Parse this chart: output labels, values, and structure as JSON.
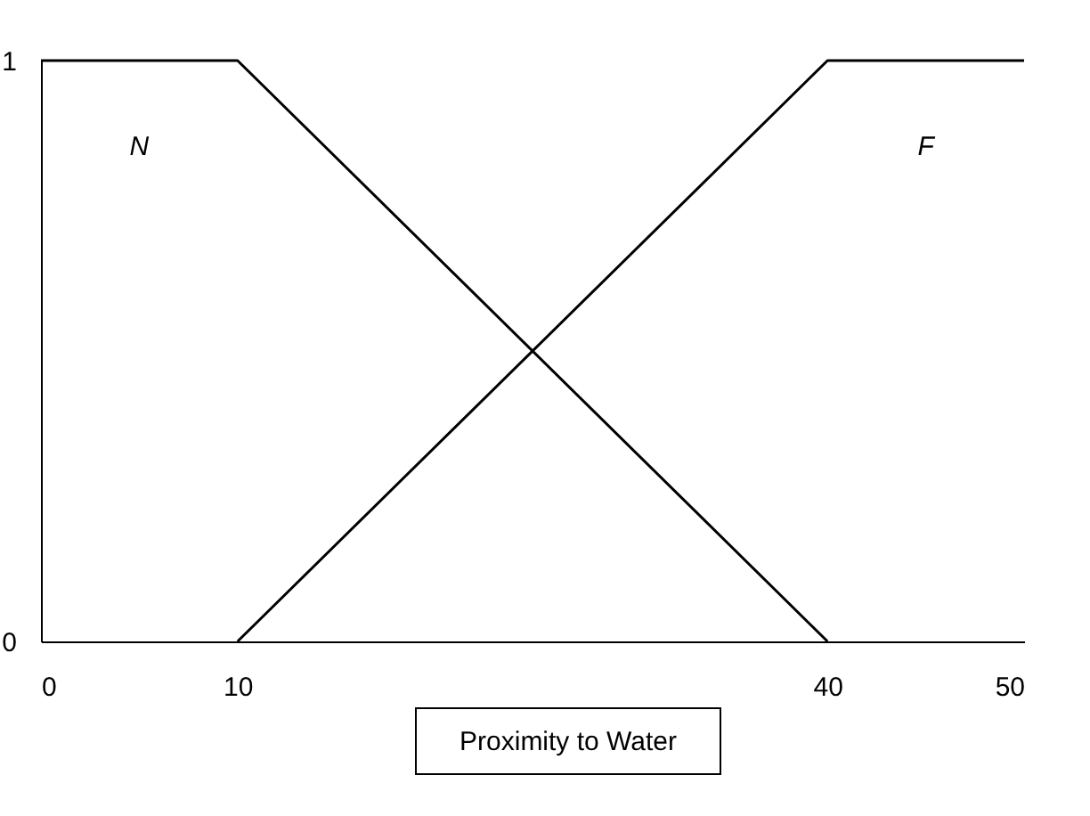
{
  "chart_data": {
    "type": "line",
    "xlabel": "Proximity to Water",
    "series": [
      {
        "name": "N",
        "color": "#000000",
        "x": [
          0,
          10,
          40
        ],
        "values": [
          1,
          1,
          0
        ]
      },
      {
        "name": "F",
        "color": "#000000",
        "x": [
          10,
          40,
          50
        ],
        "values": [
          0,
          1,
          1
        ]
      }
    ],
    "xlim": [
      0,
      50
    ],
    "xticks": [
      0,
      10,
      40,
      50
    ],
    "ylim": [
      0,
      1
    ],
    "yticks": [
      0,
      1
    ],
    "grid": false,
    "legend": false,
    "marker": "none",
    "line_style": "solid"
  }
}
